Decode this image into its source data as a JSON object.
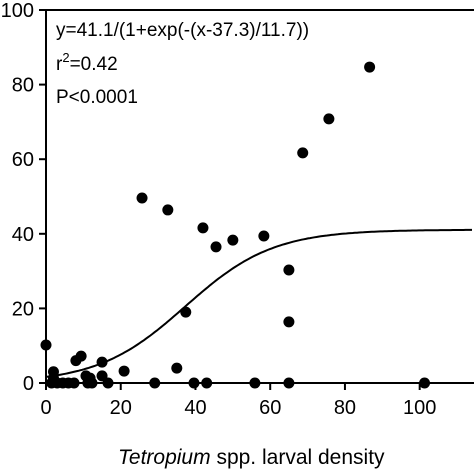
{
  "chart_data": {
    "type": "scatter",
    "xlabel": [
      "Tetropium",
      "spp. larval density"
    ],
    "annotations": {
      "equation": "y=41.1/(1+exp(-(x-37.3)/11.7))",
      "r2": [
        "r",
        "2",
        "=0.42"
      ],
      "p": "P<0.0001"
    },
    "fit": {
      "a": 41.1,
      "x0": 37.3,
      "s": 11.7
    },
    "color": "#000000",
    "x": [
      0,
      2,
      2,
      1.5,
      3,
      4.5,
      6,
      7.5,
      8,
      9.4,
      10.7,
      11.8,
      12.3,
      11.2,
      15,
      15,
      16.6,
      20.9,
      25.7,
      29.1,
      32.6,
      35,
      37.4,
      39.6,
      42,
      43,
      45.5,
      50,
      55.9,
      58.3,
      65,
      65,
      65,
      68.7,
      75.7,
      86.6,
      101.3
    ],
    "values": [
      10.2,
      3,
      1.3,
      0,
      0,
      0,
      0,
      0,
      6,
      7.2,
      1.9,
      1.3,
      0,
      0,
      5.6,
      1.9,
      0,
      3.2,
      49.6,
      0,
      46.4,
      4,
      19,
      0,
      41.6,
      0,
      36.5,
      38.3,
      0,
      39.4,
      30.3,
      16.4,
      0,
      61.7,
      70.8,
      84.7,
      0
    ],
    "xlim": [
      0,
      114
    ],
    "ylim": [
      0,
      100
    ],
    "xticks": [
      0,
      20,
      40,
      60,
      80,
      100
    ],
    "yticks": [
      0,
      20,
      40,
      60,
      80,
      100
    ]
  }
}
